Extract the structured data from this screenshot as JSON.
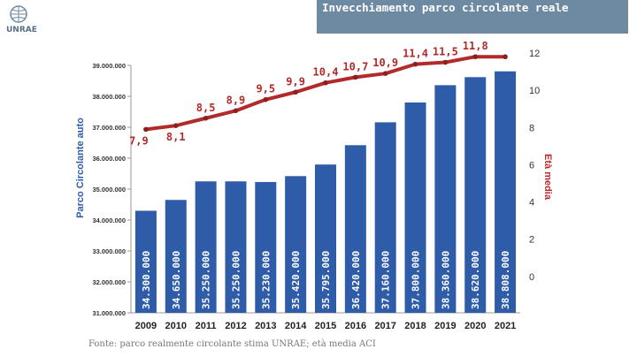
{
  "logo": {
    "text": "UNRAE"
  },
  "title": "Invecchiamento parco circolante reale",
  "source": "Fonte:  parco realmente circolante stima UNRAE; età media ACI",
  "chart_data": {
    "type": "bar+line",
    "categories": [
      "2009",
      "2010",
      "2011",
      "2012",
      "2013",
      "2014",
      "2015",
      "2016",
      "2017",
      "2018",
      "2019",
      "2020",
      "2021"
    ],
    "bar_series": {
      "name": "Parco Circolante auto",
      "values": [
        34300000,
        34650000,
        35250000,
        35250000,
        35230000,
        35420000,
        35795000,
        36420000,
        37160000,
        37800000,
        38360000,
        38620000,
        38808000
      ],
      "labels": [
        "34.300.000",
        "34.650.000",
        "35.250.000",
        "35.250.000",
        "35.230.000",
        "35.420.000",
        "35.795.000",
        "36.420.000",
        "37.160.000",
        "37.800.000",
        "38.360.000",
        "38.620.000",
        "38.808.000"
      ],
      "color": "#2f5ca8"
    },
    "line_series": {
      "name": "Età media",
      "values": [
        7.9,
        8.1,
        8.5,
        8.9,
        9.5,
        9.9,
        10.4,
        10.7,
        10.9,
        11.4,
        11.5,
        11.8,
        11.8
      ],
      "labels": [
        "7,9",
        "8,1",
        "8,5",
        "8,9",
        "9,5",
        "9,9",
        "10,4",
        "10,7",
        "10,9",
        "11,4",
        "11,5",
        "11,8",
        ""
      ],
      "color": "#b22a2a"
    },
    "ylabel_left": "Parco Circolante auto",
    "ylabel_right": "Età media",
    "ylim_left": [
      31000000,
      39000000
    ],
    "yticks_left": [
      "31.000.000",
      "32.000.000",
      "33.000.000",
      "34.000.000",
      "35.000.000",
      "36.000.000",
      "37.000.000",
      "38.000.000",
      "39.000.000"
    ],
    "ylim_right": [
      -2,
      12
    ],
    "yticks_right": [
      "0",
      "2",
      "4",
      "6",
      "8",
      "10",
      "12"
    ],
    "grid": false
  }
}
